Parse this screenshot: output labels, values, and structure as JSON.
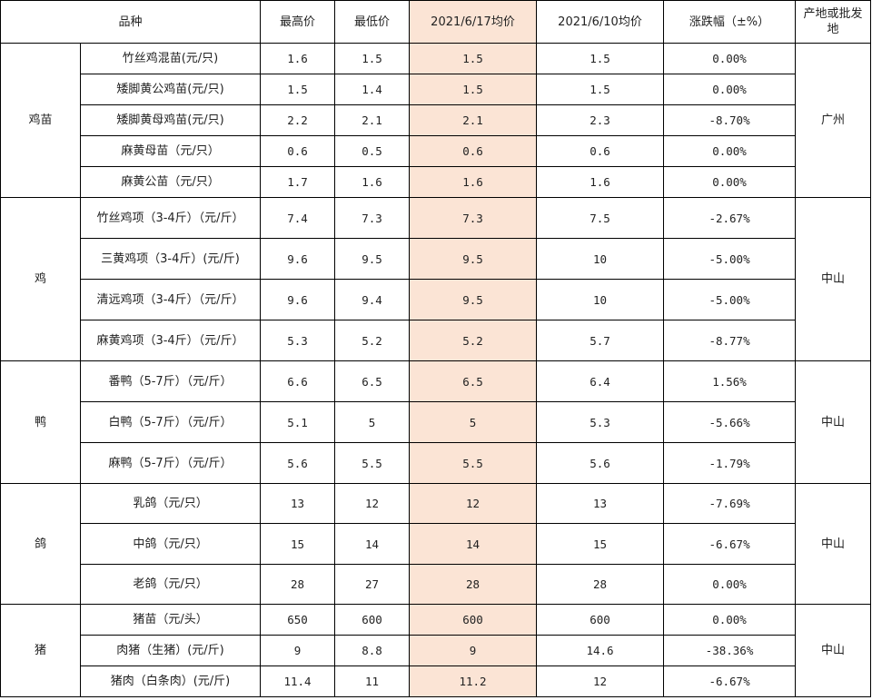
{
  "headers": {
    "variety": "品种",
    "max": "最高价",
    "min": "最低价",
    "avg_current": "2021/6/17均价",
    "avg_prev": "2021/6/10均价",
    "change": "涨跌幅（±%）",
    "origin": "产地或批发地"
  },
  "groups": [
    {
      "category": "鸡苗",
      "origin": "广州",
      "rows": [
        {
          "item": "竹丝鸡混苗(元/只)",
          "max": "1.6",
          "min": "1.5",
          "avg": "1.5",
          "prev": "1.5",
          "change": "0.00%"
        },
        {
          "item": "矮脚黄公鸡苗(元/只)",
          "max": "1.5",
          "min": "1.4",
          "avg": "1.5",
          "prev": "1.5",
          "change": "0.00%"
        },
        {
          "item": "矮脚黄母鸡苗(元/只)",
          "max": "2.2",
          "min": "2.1",
          "avg": "2.1",
          "prev": "2.3",
          "change": "-8.70%"
        },
        {
          "item": "麻黄母苗（元/只）",
          "max": "0.6",
          "min": "0.5",
          "avg": "0.6",
          "prev": "0.6",
          "change": "0.00%"
        },
        {
          "item": "麻黄公苗（元/只）",
          "max": "1.7",
          "min": "1.6",
          "avg": "1.6",
          "prev": "1.6",
          "change": "0.00%"
        }
      ]
    },
    {
      "category": "鸡",
      "origin": "中山",
      "rows": [
        {
          "item": "竹丝鸡项（3-4斤）（元/斤）",
          "max": "7.4",
          "min": "7.3",
          "avg": "7.3",
          "prev": "7.5",
          "change": "-2.67%"
        },
        {
          "item": "三黄鸡项（3-4斤）(元/斤)",
          "max": "9.6",
          "min": "9.5",
          "avg": "9.5",
          "prev": "10",
          "change": "-5.00%"
        },
        {
          "item": "清远鸡项（3-4斤）（元/斤）",
          "max": "9.6",
          "min": "9.4",
          "avg": "9.5",
          "prev": "10",
          "change": "-5.00%"
        },
        {
          "item": "麻黄鸡项（3-4斤）（元/斤）",
          "max": "5.3",
          "min": "5.2",
          "avg": "5.2",
          "prev": "5.7",
          "change": "-8.77%"
        }
      ]
    },
    {
      "category": "鸭",
      "origin": "中山",
      "rows": [
        {
          "item": "番鸭（5-7斤）（元/斤）",
          "max": "6.6",
          "min": "6.5",
          "avg": "6.5",
          "prev": "6.4",
          "change": "1.56%"
        },
        {
          "item": "白鸭（5-7斤）（元/斤）",
          "max": "5.1",
          "min": "5",
          "avg": "5",
          "prev": "5.3",
          "change": "-5.66%"
        },
        {
          "item": "麻鸭（5-7斤）（元/斤）",
          "max": "5.6",
          "min": "5.5",
          "avg": "5.5",
          "prev": "5.6",
          "change": "-1.79%"
        }
      ]
    },
    {
      "category": "鸽",
      "origin": "中山",
      "rows": [
        {
          "item": "乳鸽（元/只）",
          "max": "13",
          "min": "12",
          "avg": "12",
          "prev": "13",
          "change": "-7.69%"
        },
        {
          "item": "中鸽（元/只）",
          "max": "15",
          "min": "14",
          "avg": "14",
          "prev": "15",
          "change": "-6.67%"
        },
        {
          "item": "老鸽（元/只）",
          "max": "28",
          "min": "27",
          "avg": "28",
          "prev": "28",
          "change": "0.00%"
        }
      ]
    },
    {
      "category": "猪",
      "origin": "中山",
      "rows": [
        {
          "item": "猪苗（元/头）",
          "max": "650",
          "min": "600",
          "avg": "600",
          "prev": "600",
          "change": "0.00%"
        },
        {
          "item": "肉猪（生猪）(元/斤)",
          "max": "9",
          "min": "8.8",
          "avg": "9",
          "prev": "14.6",
          "change": "-38.36%"
        },
        {
          "item": "猪肉（白条肉）(元/斤)",
          "max": "11.4",
          "min": "11",
          "avg": "11.2",
          "prev": "12",
          "change": "-6.67%"
        }
      ]
    }
  ]
}
